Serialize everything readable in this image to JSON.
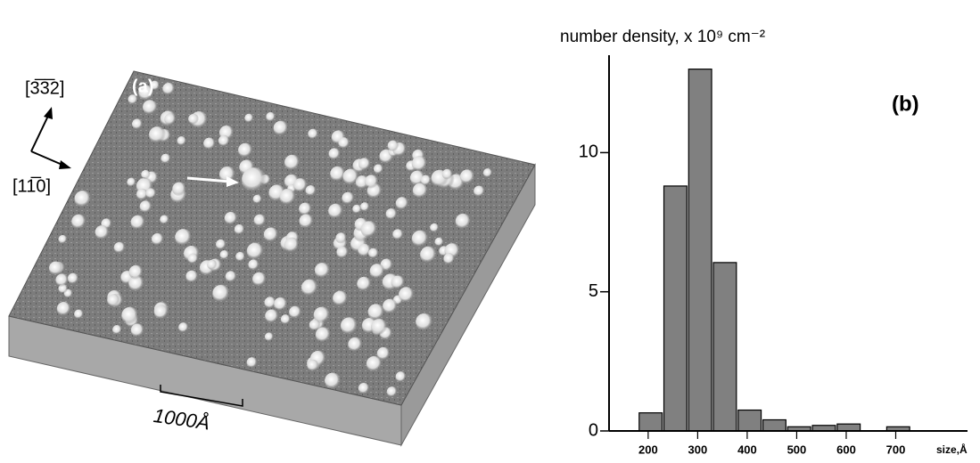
{
  "panel_a": {
    "label": "(a)",
    "direction_up": "[3̅3̅2]",
    "direction_right": "[11̅0]",
    "scale_bar": "1000Å"
  },
  "chart_data": {
    "type": "histogram",
    "panel_label": "(b)",
    "y_label": "number density, x 10⁹ cm⁻²",
    "x_label": "size,Å",
    "bins": [
      180,
      230,
      280,
      330,
      380,
      430,
      480,
      530,
      580,
      630,
      680,
      730
    ],
    "values": [
      0.65,
      8.8,
      13,
      6.05,
      0.75,
      0.4,
      0.15,
      0.2,
      0.25,
      0,
      0.15
    ],
    "color": "#808080",
    "xlim": [
      121,
      845
    ],
    "xticks": [
      200,
      300,
      400,
      500,
      600,
      700
    ],
    "ylim": [
      0,
      13.5
    ],
    "yticks": [
      0,
      5,
      10
    ]
  }
}
